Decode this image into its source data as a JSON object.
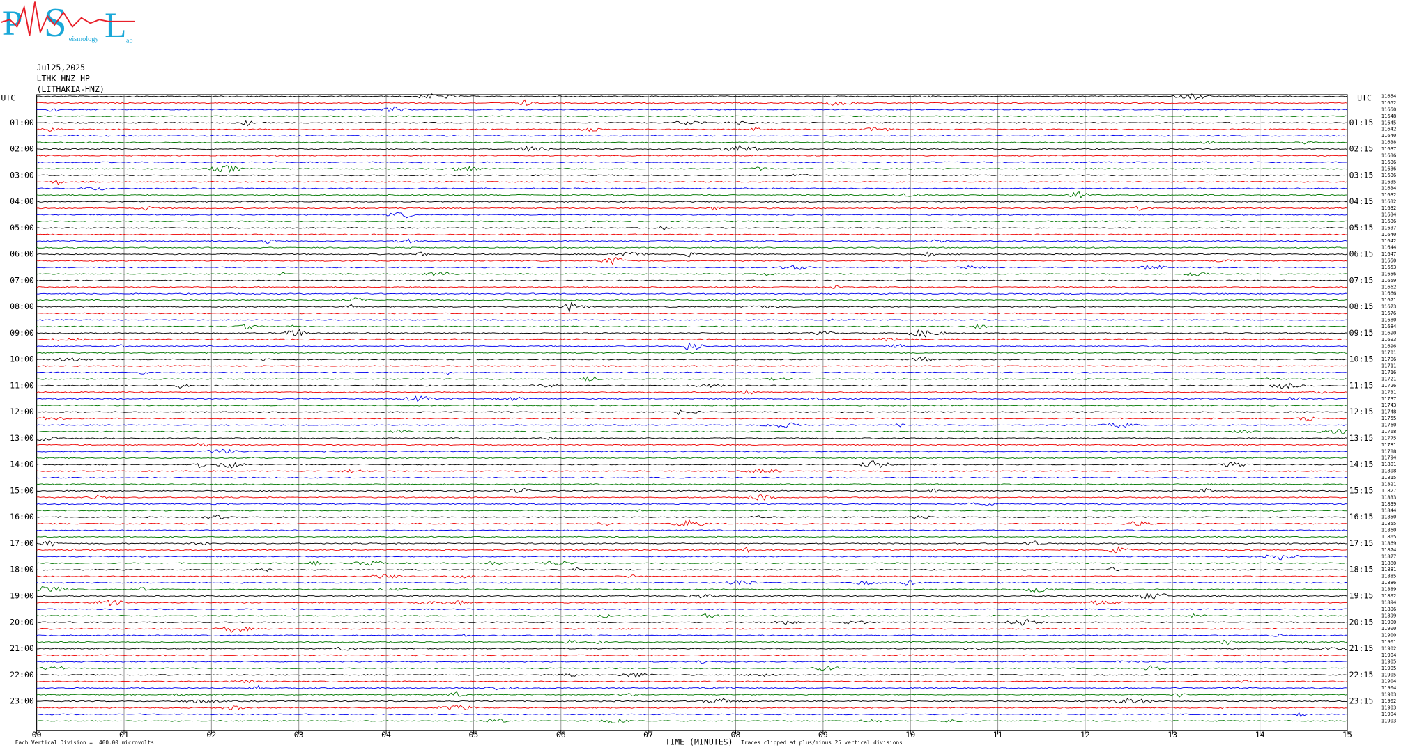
{
  "logo": {
    "letters": [
      "P",
      "S",
      "L"
    ],
    "words": [
      "eismology",
      "ab"
    ]
  },
  "header": {
    "date": "Jul25,2025",
    "station": "LTHK HNZ HP --",
    "name": "(LITHAKIA-HNZ)"
  },
  "left_axis": {
    "title": "UTC",
    "labels": [
      "01:00",
      "02:00",
      "03:00",
      "04:00",
      "05:00",
      "06:00",
      "07:00",
      "08:00",
      "09:00",
      "10:00",
      "11:00",
      "12:00",
      "13:00",
      "14:00",
      "15:00",
      "16:00",
      "17:00",
      "18:00",
      "19:00",
      "20:00",
      "21:00",
      "22:00",
      "23:00"
    ]
  },
  "right_axis": {
    "title": "UTC",
    "labels": [
      "01:15",
      "02:15",
      "03:15",
      "04:15",
      "05:15",
      "06:15",
      "07:15",
      "08:15",
      "09:15",
      "10:15",
      "11:15",
      "12:15",
      "13:15",
      "14:15",
      "15:15",
      "16:15",
      "17:15",
      "18:15",
      "19:15",
      "20:15",
      "21:15",
      "22:15",
      "23:15"
    ],
    "counts": [
      "11654",
      "11652",
      "11650",
      "11648",
      "11645",
      "11642",
      "11640",
      "11638",
      "11637",
      "11636",
      "11636",
      "11636",
      "11636",
      "11635",
      "11634",
      "11632",
      "11632",
      "11632",
      "11634",
      "11636",
      "11637",
      "11640",
      "11642",
      "11644",
      "11647",
      "11650",
      "11653",
      "11656",
      "11659",
      "11662",
      "11666",
      "11671",
      "11673",
      "11676",
      "11680",
      "11684",
      "11690",
      "11693",
      "11696",
      "11701",
      "11706",
      "11711",
      "11716",
      "11721",
      "11726",
      "11731",
      "11737",
      "11743",
      "11748",
      "11755",
      "11760",
      "11768",
      "11775",
      "11781",
      "11788",
      "11794",
      "11801",
      "11808",
      "11815",
      "11821",
      "11827",
      "11833",
      "11839",
      "11844",
      "11850",
      "11855",
      "11860",
      "11865",
      "11869",
      "11874",
      "11877",
      "11880",
      "11881",
      "11885",
      "11886",
      "11889",
      "11892",
      "11894",
      "11896",
      "11899",
      "11900",
      "11900",
      "11900",
      "11901",
      "11902",
      "11904",
      "11905",
      "11905",
      "11905",
      "11904",
      "11904",
      "11903",
      "11902",
      "11903",
      "11904",
      "11903"
    ]
  },
  "x_axis": {
    "title": "TIME (MINUTES)",
    "labels": [
      "00",
      "01",
      "02",
      "03",
      "04",
      "05",
      "06",
      "07",
      "08",
      "09",
      "10",
      "11",
      "12",
      "13",
      "14",
      "15"
    ]
  },
  "footer": {
    "scale": "Each Vertical Division =  400.00 microvolts",
    "clip": "Traces clipped at plus/minus 25 vertical divisions"
  }
}
